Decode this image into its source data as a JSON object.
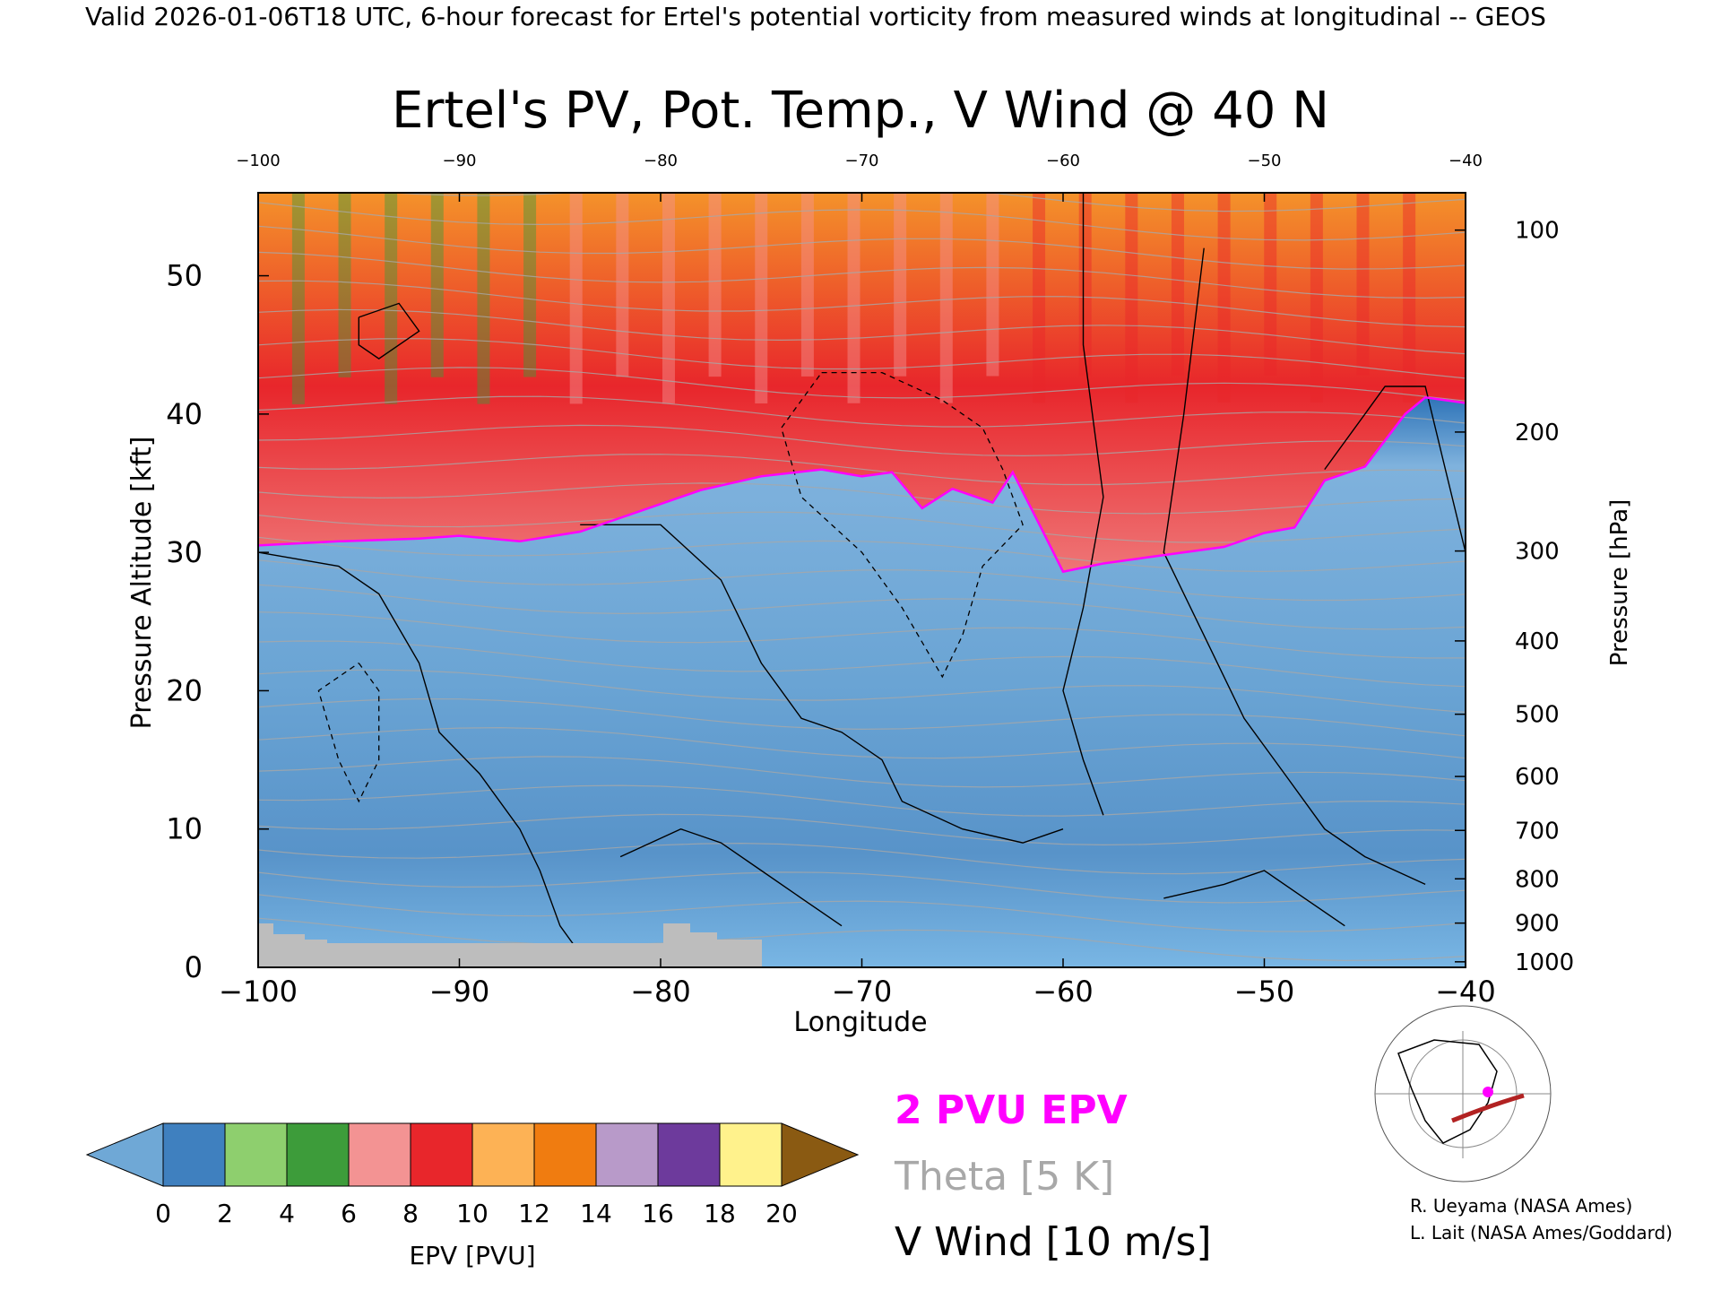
{
  "header": {
    "valid_line": "Valid 2026-01-06T18 UTC, 6-hour forecast for Ertel's potential vorticity from measured winds at longitudinal -- GEOS"
  },
  "chart_data": {
    "type": "heatmap",
    "title": "Ertel's PV, Pot. Temp., V Wind @ 40 N",
    "xlabel": "Longitude",
    "ylabel_left": "Pressure Altitude [kft]",
    "ylabel_right": "Pressure [hPa]",
    "xlim": [
      -100,
      -40
    ],
    "ylim": [
      0,
      56
    ],
    "x_ticks": [
      -100,
      -90,
      -80,
      -70,
      -60,
      -50,
      -40
    ],
    "x_tick_labels": [
      "−100",
      "−90",
      "−80",
      "−70",
      "−60",
      "−50",
      "−40"
    ],
    "x_top_tick_labels": [
      "−100",
      "−90",
      "−80",
      "−70",
      "−60",
      "−50",
      "−40"
    ],
    "y_ticks": [
      0,
      10,
      20,
      30,
      40,
      50
    ],
    "y_tick_labels": [
      "0",
      "10",
      "20",
      "30",
      "40",
      "50"
    ],
    "pressure_ticks": [
      {
        "hPa": 1000,
        "kft": 0.4
      },
      {
        "hPa": 900,
        "kft": 3.2
      },
      {
        "hPa": 800,
        "kft": 6.4
      },
      {
        "hPa": 700,
        "kft": 9.9
      },
      {
        "hPa": 600,
        "kft": 13.8
      },
      {
        "hPa": 500,
        "kft": 18.3
      },
      {
        "hPa": 400,
        "kft": 23.6
      },
      {
        "hPa": 300,
        "kft": 30.1
      },
      {
        "hPa": 200,
        "kft": 38.7
      },
      {
        "hPa": 100,
        "kft": 53.3
      }
    ],
    "pressure_tick_labels": [
      "1000",
      "900",
      "800",
      "700",
      "600",
      "500",
      "400",
      "300",
      "200",
      "100"
    ],
    "pv_2pvu_tropopause": {
      "lon": [
        -100,
        -96,
        -92,
        -90,
        -87,
        -84,
        -81,
        -78,
        -75,
        -72,
        -70,
        -68.5,
        -67,
        -65.5,
        -63.5,
        -62.5,
        -61,
        -60,
        -58,
        -56,
        -54,
        -52,
        -50,
        -48.5,
        -47,
        -45,
        -43,
        -42,
        -40
      ],
      "kft": [
        30.5,
        30.8,
        31.0,
        31.2,
        30.8,
        31.5,
        33.0,
        34.5,
        35.5,
        36.0,
        35.5,
        35.8,
        33.2,
        34.6,
        33.6,
        35.8,
        31.5,
        28.6,
        29.2,
        29.6,
        30.0,
        30.4,
        31.4,
        31.8,
        35.2,
        36.2,
        40.0,
        41.2,
        40.8
      ]
    },
    "colorbar": {
      "label": "EPV [PVU]",
      "tick_labels": [
        "0",
        "2",
        "4",
        "6",
        "8",
        "10",
        "12",
        "14",
        "16",
        "18",
        "20"
      ],
      "colors": [
        "#6fa8d6",
        "#3f80bf",
        "#8ecf6e",
        "#3d9c3a",
        "#f39393",
        "#e8262b",
        "#fdb255",
        "#f07c10",
        "#b89ac9",
        "#6d3a9c",
        "#fff28c",
        "#8a5a12"
      ]
    },
    "legend": {
      "pv_line": "2 PVU EPV",
      "pv_color": "#ff00ff",
      "theta": "Theta [5 K]",
      "theta_color": "#a8a8a8",
      "wind": "V Wind [10 m/s]",
      "wind_color": "#000000"
    }
  },
  "credits": {
    "line1": "R. Ueyama (NASA Ames)",
    "line2": "L. Lait (NASA Ames/Goddard)"
  }
}
